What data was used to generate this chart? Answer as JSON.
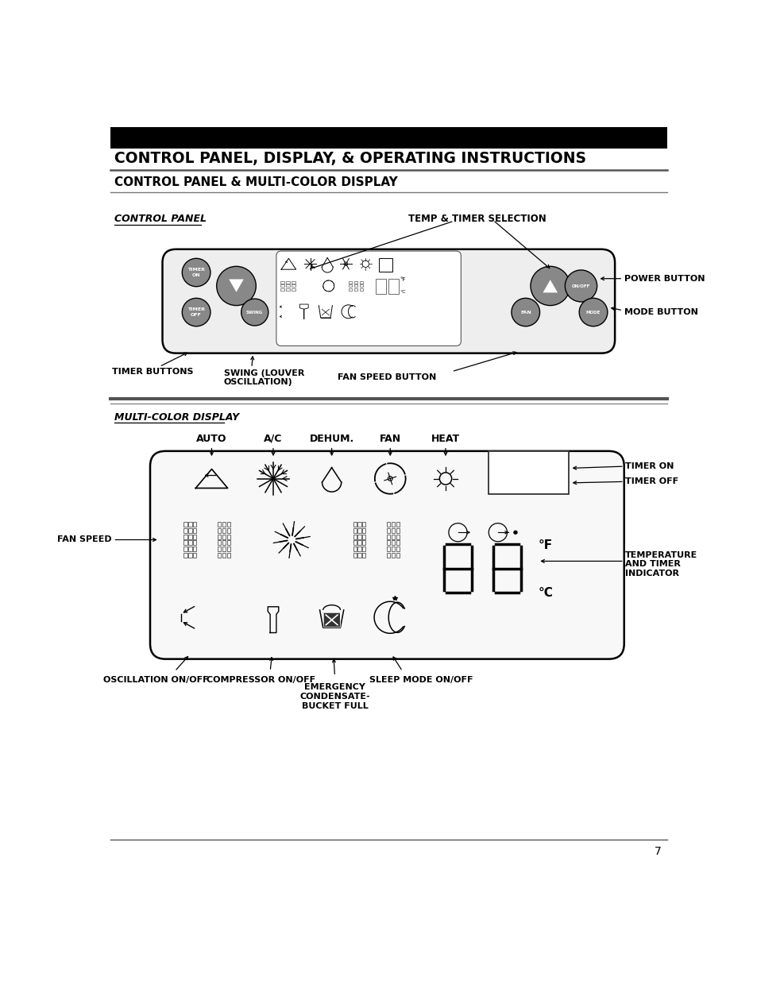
{
  "page_width": 9.54,
  "page_height": 12.35,
  "bg_color": "#ffffff",
  "title_text": "CONTROL PANEL, DISPLAY, & OPERATING INSTRUCTIONS",
  "subtitle1": "CONTROL PANEL & MULTI-COLOR DISPLAY",
  "control_panel_label": "CONTROL PANEL",
  "multi_color_label": "MULTI-COLOR DISPLAY",
  "auto_label": "AUTO",
  "ac_label": "A/C",
  "dehum_label": "DEHUM.",
  "fan_label": "FAN",
  "heat_label": "HEAT",
  "timer_on_label": "TIMER ON",
  "timer_off_label": "TIMER OFF",
  "fan_speed_label": "FAN SPEED",
  "temp_indicator_label": "TEMPERATURE\nAND TIMER\nINDICATOR",
  "osc_label": "OSCILLATION ON/OFF",
  "comp_label": "COMPRESSOR ON/OFF",
  "emerg_label": "EMERGENCY\nCONDENSATE-\nBUCKET FULL",
  "sleep_label": "SLEEP MODE ON/OFF",
  "temp_timer_label": "TEMP & TIMER SELECTION",
  "power_button_label": "POWER BUTTON",
  "mode_button_label": "MODE BUTTON",
  "timer_buttons_label": "TIMER BUTTONS",
  "swing_label": "SWING (LOUVER\nOSCILLATION)",
  "fan_speed_btn_label": "FAN SPEED BUTTON",
  "page_number": "7"
}
